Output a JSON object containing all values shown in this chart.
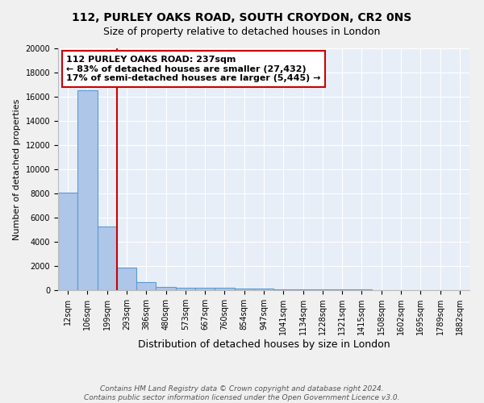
{
  "title": "112, PURLEY OAKS ROAD, SOUTH CROYDON, CR2 0NS",
  "subtitle": "Size of property relative to detached houses in London",
  "xlabel": "Distribution of detached houses by size in London",
  "ylabel": "Number of detached properties",
  "categories": [
    "12sqm",
    "106sqm",
    "199sqm",
    "293sqm",
    "386sqm",
    "480sqm",
    "573sqm",
    "667sqm",
    "760sqm",
    "854sqm",
    "947sqm",
    "1041sqm",
    "1134sqm",
    "1228sqm",
    "1321sqm",
    "1415sqm",
    "1508sqm",
    "1602sqm",
    "1695sqm",
    "1789sqm",
    "1882sqm"
  ],
  "values": [
    8100,
    16500,
    5300,
    1850,
    700,
    300,
    220,
    200,
    180,
    150,
    130,
    100,
    80,
    60,
    50,
    40,
    30,
    25,
    20,
    15,
    10
  ],
  "bar_color": "#aec6e8",
  "bar_edge_color": "#5b9bd5",
  "bar_linewidth": 0.8,
  "redline_x": 2.5,
  "annotation_line1": "112 PURLEY OAKS ROAD: 237sqm",
  "annotation_line2": "← 83% of detached houses are smaller (27,432)",
  "annotation_line3": "17% of semi-detached houses are larger (5,445) →",
  "annotation_box_color": "#ffffff",
  "annotation_box_edge_color": "#cc0000",
  "footer_line1": "Contains HM Land Registry data © Crown copyright and database right 2024.",
  "footer_line2": "Contains public sector information licensed under the Open Government Licence v3.0.",
  "plot_bg_color": "#e8eef7",
  "fig_bg_color": "#f0f0f0",
  "ylim": [
    0,
    20000
  ],
  "yticks": [
    0,
    2000,
    4000,
    6000,
    8000,
    10000,
    12000,
    14000,
    16000,
    18000,
    20000
  ],
  "title_fontsize": 10,
  "xlabel_fontsize": 9,
  "ylabel_fontsize": 8,
  "tick_fontsize": 7,
  "annotation_fontsize": 8,
  "footer_fontsize": 6.5
}
